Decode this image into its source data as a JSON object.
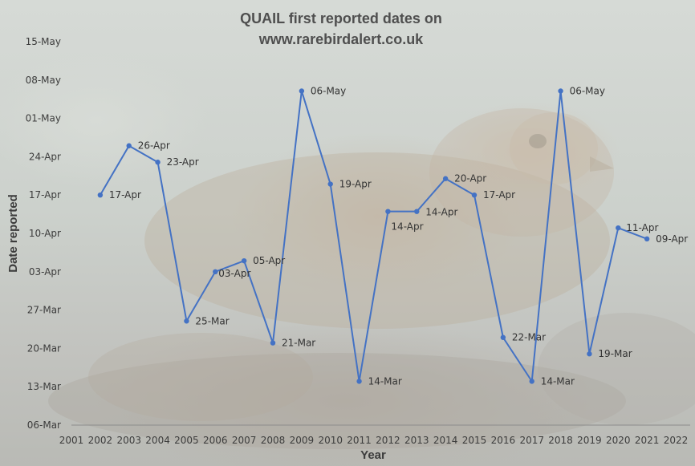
{
  "chart_data": {
    "type": "line",
    "title": [
      "QUAIL first reported dates on",
      "www.rarebirdalert.co.uk"
    ],
    "xlabel": "Year",
    "ylabel": "Date reported",
    "x_ticks": [
      "2001",
      "2002",
      "2003",
      "2004",
      "2005",
      "2006",
      "2007",
      "2008",
      "2009",
      "2010",
      "2011",
      "2012",
      "2013",
      "2014",
      "2015",
      "2016",
      "2017",
      "2018",
      "2019",
      "2020",
      "2021",
      "2022"
    ],
    "y_ticks": [
      "06-Mar",
      "13-Mar",
      "20-Mar",
      "27-Mar",
      "03-Apr",
      "10-Apr",
      "17-Apr",
      "24-Apr",
      "01-May",
      "08-May",
      "15-May"
    ],
    "ylim": [
      "06-Mar",
      "15-May"
    ],
    "grid": false,
    "legend": "none",
    "series_color": "#4472C4",
    "points": [
      {
        "x": "2002",
        "y": "17-Apr",
        "label": "17-Apr"
      },
      {
        "x": "2003",
        "y": "26-Apr",
        "label": "26-Apr"
      },
      {
        "x": "2004",
        "y": "23-Apr",
        "label": "23-Apr"
      },
      {
        "x": "2005",
        "y": "25-Mar",
        "label": "25-Mar"
      },
      {
        "x": "2006",
        "y": "03-Apr",
        "label": "03-Apr"
      },
      {
        "x": "2007",
        "y": "05-Apr",
        "label": "05-Apr"
      },
      {
        "x": "2008",
        "y": "21-Mar",
        "label": "21-Mar"
      },
      {
        "x": "2009",
        "y": "06-May",
        "label": "06-May"
      },
      {
        "x": "2010",
        "y": "19-Apr",
        "label": "19-Apr"
      },
      {
        "x": "2011",
        "y": "14-Mar",
        "label": "14-Mar"
      },
      {
        "x": "2012",
        "y": "14-Apr",
        "label": "14-Apr"
      },
      {
        "x": "2013",
        "y": "14-Apr",
        "label": "14-Apr"
      },
      {
        "x": "2014",
        "y": "20-Apr",
        "label": "20-Apr"
      },
      {
        "x": "2015",
        "y": "17-Apr",
        "label": "17-Apr"
      },
      {
        "x": "2016",
        "y": "22-Mar",
        "label": "22-Mar"
      },
      {
        "x": "2017",
        "y": "14-Mar",
        "label": "14-Mar"
      },
      {
        "x": "2018",
        "y": "06-May",
        "label": "06-May"
      },
      {
        "x": "2019",
        "y": "19-Mar",
        "label": "19-Mar"
      },
      {
        "x": "2020",
        "y": "11-Apr",
        "label": "11-Apr"
      },
      {
        "x": "2021",
        "y": "09-Apr",
        "label": "09-Apr"
      }
    ]
  }
}
